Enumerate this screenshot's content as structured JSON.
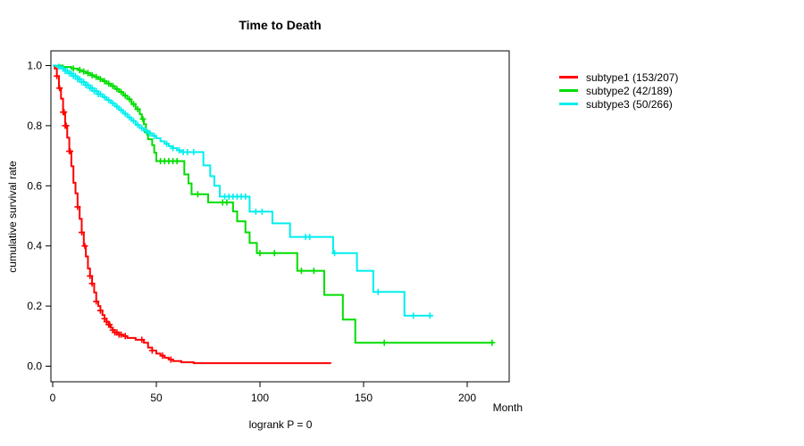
{
  "chart_data": {
    "type": "line",
    "subtype": "kaplan-meier-step-curves",
    "title": "Time to Death",
    "xlabel": "Month",
    "ylabel": "cumulative survival rate",
    "footer": "logrank P = 0",
    "xlim": [
      0,
      220
    ],
    "ylim": [
      0.0,
      1.0
    ],
    "x_ticks": [
      0,
      50,
      100,
      150,
      200
    ],
    "y_ticks": [
      0.0,
      0.2,
      0.4,
      0.6,
      0.8,
      1.0
    ],
    "grid": false,
    "legend_position": "right-outside",
    "axis_color": "#000000",
    "series": [
      {
        "name": "subtype1",
        "label": "subtype1 (153/207)",
        "color": "#ff0000",
        "points": [
          [
            0,
            1.0
          ],
          [
            1,
            0.99
          ],
          [
            2,
            0.965
          ],
          [
            3,
            0.925
          ],
          [
            4,
            0.89
          ],
          [
            5,
            0.845
          ],
          [
            6,
            0.8
          ],
          [
            7,
            0.76
          ],
          [
            8,
            0.715
          ],
          [
            9,
            0.665
          ],
          [
            10,
            0.61
          ],
          [
            11,
            0.575
          ],
          [
            12,
            0.53
          ],
          [
            13,
            0.49
          ],
          [
            14,
            0.445
          ],
          [
            15,
            0.4
          ],
          [
            16,
            0.365
          ],
          [
            17,
            0.325
          ],
          [
            18,
            0.3
          ],
          [
            19,
            0.275
          ],
          [
            20,
            0.245
          ],
          [
            21,
            0.215
          ],
          [
            22,
            0.2
          ],
          [
            23,
            0.185
          ],
          [
            24,
            0.17
          ],
          [
            25,
            0.158
          ],
          [
            26,
            0.148
          ],
          [
            27,
            0.138
          ],
          [
            28,
            0.128
          ],
          [
            29,
            0.12
          ],
          [
            30,
            0.112
          ],
          [
            32,
            0.105
          ],
          [
            34,
            0.1
          ],
          [
            36,
            0.094
          ],
          [
            40,
            0.088
          ],
          [
            44,
            0.078
          ],
          [
            46,
            0.062
          ],
          [
            48,
            0.052
          ],
          [
            50,
            0.042
          ],
          [
            52,
            0.035
          ],
          [
            54,
            0.028
          ],
          [
            56,
            0.022
          ],
          [
            58,
            0.017
          ],
          [
            62,
            0.013
          ],
          [
            68,
            0.01
          ],
          [
            134,
            0.008
          ]
        ],
        "censor_months": [
          2,
          3.3,
          5,
          5.5,
          6,
          6.5,
          8,
          8.4,
          12,
          14,
          15.5,
          18,
          19,
          21,
          23,
          25,
          26,
          27,
          27.5,
          29,
          30,
          31,
          32,
          33,
          35,
          43,
          48,
          53,
          57
        ]
      },
      {
        "name": "subtype2",
        "label": "subtype2 (42/189)",
        "color": "#00dd00",
        "points": [
          [
            0,
            1.0
          ],
          [
            5,
            0.995
          ],
          [
            9,
            0.99
          ],
          [
            12,
            0.985
          ],
          [
            14,
            0.98
          ],
          [
            16,
            0.975
          ],
          [
            18,
            0.968
          ],
          [
            20,
            0.962
          ],
          [
            22,
            0.955
          ],
          [
            24,
            0.948
          ],
          [
            26,
            0.94
          ],
          [
            28,
            0.932
          ],
          [
            30,
            0.922
          ],
          [
            32,
            0.912
          ],
          [
            34,
            0.9
          ],
          [
            36,
            0.888
          ],
          [
            38,
            0.872
          ],
          [
            40,
            0.855
          ],
          [
            42,
            0.838
          ],
          [
            43,
            0.822
          ],
          [
            44,
            0.805
          ],
          [
            45,
            0.778
          ],
          [
            46,
            0.755
          ],
          [
            48,
            0.735
          ],
          [
            49,
            0.71
          ],
          [
            50,
            0.682
          ],
          [
            63.5,
            0.638
          ],
          [
            65.5,
            0.608
          ],
          [
            67,
            0.572
          ],
          [
            75,
            0.545
          ],
          [
            87,
            0.515
          ],
          [
            89,
            0.482
          ],
          [
            93,
            0.445
          ],
          [
            95,
            0.41
          ],
          [
            98.5,
            0.376
          ],
          [
            118,
            0.317
          ],
          [
            131,
            0.237
          ],
          [
            140,
            0.155
          ],
          [
            146,
            0.078
          ],
          [
            212,
            0.078
          ]
        ],
        "censor_months": [
          10,
          13,
          15,
          17,
          19,
          21,
          23,
          25,
          27,
          29,
          31,
          33,
          35,
          37,
          39,
          41,
          43.5,
          45.5,
          52,
          54,
          56,
          58,
          60,
          70,
          82,
          84,
          100,
          107,
          120,
          126,
          160,
          212
        ]
      },
      {
        "name": "subtype3",
        "label": "subtype3 (50/266)",
        "color": "#00eeee",
        "points": [
          [
            0,
            1.0
          ],
          [
            2,
            0.996
          ],
          [
            4,
            0.99
          ],
          [
            6,
            0.982
          ],
          [
            8,
            0.974
          ],
          [
            10,
            0.965
          ],
          [
            12,
            0.955
          ],
          [
            14,
            0.945
          ],
          [
            16,
            0.935
          ],
          [
            18,
            0.925
          ],
          [
            20,
            0.915
          ],
          [
            22,
            0.905
          ],
          [
            24,
            0.895
          ],
          [
            26,
            0.885
          ],
          [
            28,
            0.875
          ],
          [
            30,
            0.864
          ],
          [
            32,
            0.852
          ],
          [
            34,
            0.84
          ],
          [
            36,
            0.828
          ],
          [
            38,
            0.816
          ],
          [
            40,
            0.803
          ],
          [
            42,
            0.792
          ],
          [
            44,
            0.783
          ],
          [
            46,
            0.775
          ],
          [
            48,
            0.766
          ],
          [
            50,
            0.758
          ],
          [
            52,
            0.748
          ],
          [
            54,
            0.74
          ],
          [
            56,
            0.732
          ],
          [
            58,
            0.725
          ],
          [
            60,
            0.718
          ],
          [
            62,
            0.712
          ],
          [
            72.7,
            0.668
          ],
          [
            76,
            0.632
          ],
          [
            78,
            0.6
          ],
          [
            80.6,
            0.564
          ],
          [
            95,
            0.514
          ],
          [
            106,
            0.475
          ],
          [
            114.5,
            0.43
          ],
          [
            135.3,
            0.376
          ],
          [
            146.8,
            0.317
          ],
          [
            154.7,
            0.247
          ],
          [
            169.7,
            0.168
          ],
          [
            183.5,
            0.168
          ]
        ],
        "censor_months": [
          3,
          5,
          6,
          7,
          8,
          9,
          10,
          11,
          12,
          13,
          14,
          15,
          16,
          17,
          18,
          19,
          20,
          21,
          22,
          23,
          25,
          27,
          29,
          31,
          33,
          35,
          37,
          39,
          41,
          43,
          45,
          47,
          49,
          55,
          58,
          61,
          63,
          65,
          68,
          83,
          85,
          87,
          89,
          91,
          93,
          98,
          101,
          122,
          124,
          136,
          157,
          174,
          182
        ]
      }
    ]
  }
}
